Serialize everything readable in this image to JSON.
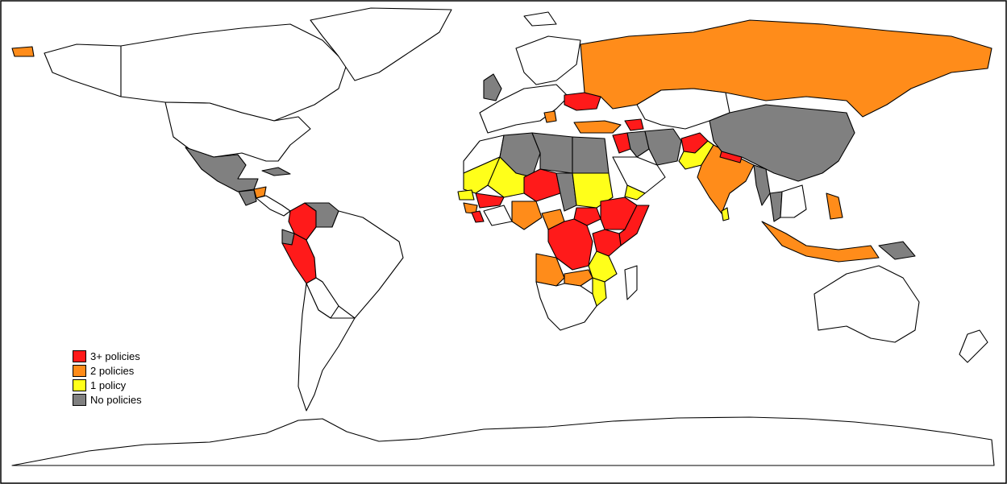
{
  "legend": {
    "items": [
      {
        "label": "3+ policies",
        "color": "#ff1a1a"
      },
      {
        "label": "2 policies",
        "color": "#ff8c1a"
      },
      {
        "label": "1 policy",
        "color": "#ffff1a"
      },
      {
        "label": "No policies",
        "color": "#808080"
      }
    ]
  },
  "map_data": {
    "type": "choropleth",
    "region": "world",
    "categories": [
      "3+ policies",
      "2 policies",
      "1 policy",
      "No policies"
    ],
    "regions": [
      {
        "name": "Colombia",
        "category": "3+ policies"
      },
      {
        "name": "Peru",
        "category": "3+ policies"
      },
      {
        "name": "Ukraine",
        "category": "3+ policies"
      },
      {
        "name": "Armenia",
        "category": "3+ policies"
      },
      {
        "name": "Syria",
        "category": "3+ policies"
      },
      {
        "name": "Afghanistan",
        "category": "3+ policies"
      },
      {
        "name": "Nepal",
        "category": "3+ policies"
      },
      {
        "name": "Niger",
        "category": "3+ policies"
      },
      {
        "name": "Nigeria",
        "category": "3+ policies"
      },
      {
        "name": "Burkina Faso",
        "category": "3+ policies"
      },
      {
        "name": "Sierra Leone",
        "category": "3+ policies"
      },
      {
        "name": "Ethiopia",
        "category": "3+ policies"
      },
      {
        "name": "Somalia",
        "category": "3+ policies"
      },
      {
        "name": "South Sudan",
        "category": "3+ policies"
      },
      {
        "name": "Kenya",
        "category": "3+ policies"
      },
      {
        "name": "Democratic Republic of the Congo",
        "category": "3+ policies"
      },
      {
        "name": "Central African Republic",
        "category": "3+ policies"
      },
      {
        "name": "Uganda",
        "category": "3+ policies"
      },
      {
        "name": "Russia",
        "category": "2 policies"
      },
      {
        "name": "Turkey",
        "category": "2 policies"
      },
      {
        "name": "India",
        "category": "2 policies"
      },
      {
        "name": "Indonesia",
        "category": "2 policies"
      },
      {
        "name": "Philippines",
        "category": "2 policies"
      },
      {
        "name": "Cameroon",
        "category": "2 policies"
      },
      {
        "name": "Angola",
        "category": "2 policies"
      },
      {
        "name": "Zambia",
        "category": "2 policies"
      },
      {
        "name": "Guinea",
        "category": "2 policies"
      },
      {
        "name": "Honduras",
        "category": "2 policies"
      },
      {
        "name": "Serbia",
        "category": "2 policies"
      },
      {
        "name": "Mali",
        "category": "1 policy"
      },
      {
        "name": "Mauritania",
        "category": "1 policy"
      },
      {
        "name": "Sudan",
        "category": "1 policy"
      },
      {
        "name": "Yemen",
        "category": "1 policy"
      },
      {
        "name": "Pakistan",
        "category": "1 policy"
      },
      {
        "name": "Sri Lanka",
        "category": "1 policy"
      },
      {
        "name": "Mozambique",
        "category": "1 policy"
      },
      {
        "name": "Tanzania",
        "category": "1 policy"
      },
      {
        "name": "Senegal",
        "category": "1 policy"
      },
      {
        "name": "Mexico",
        "category": "No policies"
      },
      {
        "name": "Venezuela",
        "category": "No policies"
      },
      {
        "name": "China",
        "category": "No policies"
      },
      {
        "name": "Iran",
        "category": "No policies"
      },
      {
        "name": "Iraq",
        "category": "No policies"
      },
      {
        "name": "Egypt",
        "category": "No policies"
      },
      {
        "name": "Libya",
        "category": "No policies"
      },
      {
        "name": "Algeria",
        "category": "No policies"
      },
      {
        "name": "Chad",
        "category": "No policies"
      },
      {
        "name": "United Kingdom",
        "category": "No policies"
      },
      {
        "name": "Myanmar",
        "category": "No policies"
      },
      {
        "name": "Thailand",
        "category": "No policies"
      },
      {
        "name": "Cambodia",
        "category": "No policies"
      },
      {
        "name": "Papua New Guinea",
        "category": "No policies"
      },
      {
        "name": "Ecuador",
        "category": "No policies"
      },
      {
        "name": "Guatemala",
        "category": "No policies"
      },
      {
        "name": "Cuba",
        "category": "No policies"
      },
      {
        "name": "Libya",
        "category": "No policies"
      }
    ]
  }
}
